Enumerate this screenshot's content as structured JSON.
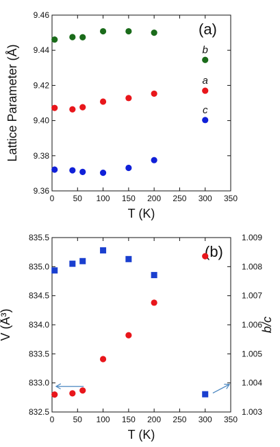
{
  "colors": {
    "a": "#e8161b",
    "b": "#1a6b1a",
    "c": "#1020d8",
    "volume": "#e8161b",
    "ratio": "#1a3fcf",
    "arrow": "#4a86c0"
  },
  "chart_data": [
    {
      "panel": "(a)",
      "type": "scatter",
      "xlabel": "T (K)",
      "ylabel": "Lattice Parameter (Å)",
      "xlim": [
        0,
        350
      ],
      "ylim": [
        9.36,
        9.46
      ],
      "xticks": [
        "0",
        "50",
        "100",
        "150",
        "200",
        "250",
        "300",
        "350"
      ],
      "yticks": [
        "9.36",
        "9.38",
        "9.40",
        "9.42",
        "9.44",
        "9.46"
      ],
      "grid": false,
      "series": [
        {
          "name": "b",
          "color": "#1a6b1a",
          "marker": "circle",
          "x": [
            5,
            40,
            60,
            100,
            150,
            200,
            300
          ],
          "y": [
            9.4461,
            9.4475,
            9.4474,
            9.4508,
            9.4508,
            9.45,
            9.4345
          ]
        },
        {
          "name": "a",
          "color": "#e8161b",
          "marker": "circle",
          "x": [
            5,
            40,
            60,
            100,
            150,
            200,
            300
          ],
          "y": [
            9.4072,
            9.4064,
            9.4076,
            9.4108,
            9.4128,
            9.4153,
            9.417
          ]
        },
        {
          "name": "c",
          "color": "#1020d8",
          "marker": "circle",
          "x": [
            5,
            40,
            60,
            100,
            150,
            200,
            300
          ],
          "y": [
            9.3721,
            9.3717,
            9.3708,
            9.3703,
            9.3731,
            9.3775,
            9.4003
          ]
        }
      ]
    },
    {
      "panel": "(b)",
      "type": "scatter",
      "xlabel": "T (K)",
      "ylabel": "V (Å³)",
      "y2label": "b/c",
      "xlim": [
        0,
        350
      ],
      "ylim": [
        832.5,
        835.5
      ],
      "y2lim": [
        1.003,
        1.009
      ],
      "xticks": [
        "0",
        "50",
        "100",
        "150",
        "200",
        "250",
        "300",
        "350"
      ],
      "yticks": [
        "832.5",
        "833.0",
        "833.5",
        "834.0",
        "834.5",
        "835.0",
        "835.5"
      ],
      "y2ticks": [
        "1.003",
        "1.004",
        "1.005",
        "1.006",
        "1.007",
        "1.008",
        "1.009"
      ],
      "grid": false,
      "series": [
        {
          "axis": "left",
          "color": "#e8161b",
          "marker": "circle",
          "x": [
            5,
            40,
            60,
            100,
            150,
            200,
            300
          ],
          "y": [
            832.8,
            832.82,
            832.87,
            833.41,
            833.82,
            834.38,
            835.18
          ]
        },
        {
          "axis": "right",
          "color": "#1a3fcf",
          "marker": "square",
          "x": [
            5,
            40,
            60,
            100,
            150,
            200,
            300
          ],
          "y": [
            1.00787,
            1.0081,
            1.00819,
            1.00856,
            1.00826,
            1.00771,
            1.00361
          ]
        }
      ]
    }
  ]
}
